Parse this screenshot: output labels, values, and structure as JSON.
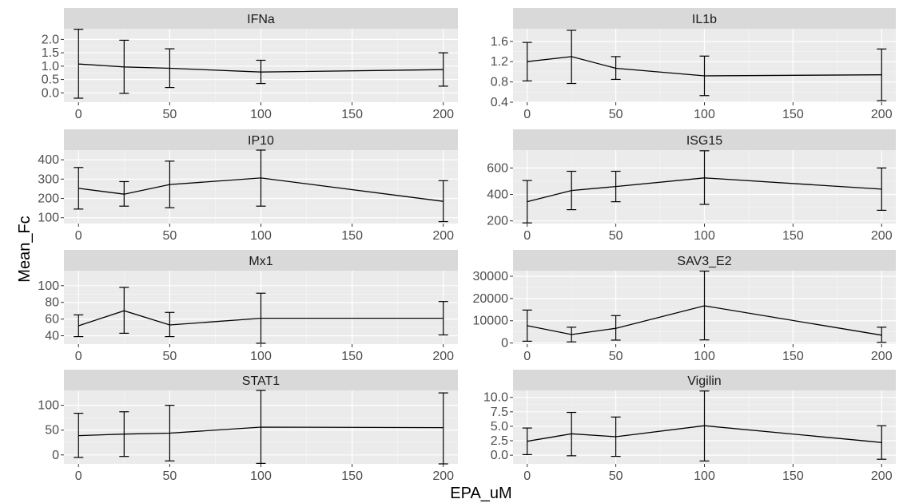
{
  "chart_data": {
    "type": "line",
    "xlabel": "EPA_uM",
    "ylabel": "Mean_Fc",
    "x": [
      0,
      25,
      50,
      100,
      200
    ],
    "x_ticks": [
      0,
      50,
      100,
      150,
      200
    ],
    "xlim": [
      -8,
      208
    ],
    "grid": true,
    "panels": [
      {
        "name": "IFNa",
        "ylim": [
          -0.35,
          2.4
        ],
        "y_ticks": [
          0.0,
          0.5,
          1.0,
          1.5,
          2.0
        ],
        "y_tick_labels": [
          "0.0",
          "0.5",
          "1.0",
          "1.5",
          "2.0"
        ],
        "mean": [
          1.08,
          0.97,
          0.92,
          0.78,
          0.87
        ],
        "lower": [
          -0.2,
          -0.02,
          0.2,
          0.35,
          0.25
        ],
        "upper": [
          2.38,
          1.97,
          1.65,
          1.22,
          1.5
        ]
      },
      {
        "name": "IL1b",
        "ylim": [
          0.4,
          1.85
        ],
        "y_ticks": [
          0.4,
          0.8,
          1.2,
          1.6
        ],
        "y_tick_labels": [
          "0.4",
          "0.8",
          "1.2",
          "1.6"
        ],
        "mean": [
          1.2,
          1.3,
          1.07,
          0.92,
          0.94
        ],
        "lower": [
          0.82,
          0.77,
          0.85,
          0.53,
          0.43
        ],
        "upper": [
          1.58,
          1.82,
          1.3,
          1.31,
          1.45
        ]
      },
      {
        "name": "IP10",
        "ylim": [
          70,
          450
        ],
        "y_ticks": [
          100,
          200,
          300,
          400
        ],
        "y_tick_labels": [
          "100",
          "200",
          "300",
          "400"
        ],
        "mean": [
          252,
          222,
          272,
          306,
          185
        ],
        "lower": [
          145,
          160,
          152,
          160,
          80
        ],
        "upper": [
          360,
          287,
          393,
          450
        ],
        "upper_note": "",
        "upper_last": 292
      },
      {
        "name": "ISG15",
        "ylim": [
          180,
          735
        ],
        "y_ticks": [
          200,
          400,
          600
        ],
        "y_tick_labels": [
          "200",
          "400",
          "600"
        ],
        "mean": [
          345,
          430,
          460,
          525,
          440
        ],
        "lower": [
          185,
          285,
          345,
          325,
          280
        ],
        "upper": [
          505,
          575,
          575,
          730,
          600
        ]
      },
      {
        "name": "Mx1",
        "ylim": [
          30,
          118
        ],
        "y_ticks": [
          40,
          60,
          80,
          100
        ],
        "y_tick_labels": [
          "40",
          "60",
          "80",
          "100"
        ],
        "mean": [
          52,
          70,
          53,
          61,
          61
        ],
        "lower": [
          39,
          43,
          39,
          31,
          41
        ],
        "upper": [
          65,
          98,
          68,
          91,
          81
        ]
      },
      {
        "name": "SAV3_E2",
        "ylim": [
          -500,
          32500
        ],
        "y_ticks": [
          0,
          10000,
          20000,
          30000
        ],
        "y_tick_labels": [
          "0",
          "10000",
          "20000",
          "30000"
        ],
        "mean": [
          7800,
          3800,
          6600,
          16700,
          3500
        ],
        "lower": [
          800,
          500,
          1300,
          1400,
          300
        ],
        "upper": [
          14800,
          7100,
          12300,
          32300,
          7100
        ]
      },
      {
        "name": "STAT1",
        "ylim": [
          -18,
          130
        ],
        "y_ticks": [
          0,
          50,
          100
        ],
        "y_tick_labels": [
          "0",
          "50",
          "100"
        ],
        "mean": [
          39,
          42,
          44,
          56,
          55
        ],
        "lower": [
          -5,
          -3,
          -12,
          -17,
          -18
        ],
        "upper": [
          84,
          87,
          100,
          130,
          125
        ]
      },
      {
        "name": "Vigilin",
        "ylim": [
          -1.5,
          11.2
        ],
        "y_ticks": [
          0.0,
          2.5,
          5.0,
          7.5,
          10.0
        ],
        "y_tick_labels": [
          "0.0",
          "2.5",
          "5.0",
          "7.5",
          "10.0"
        ],
        "mean": [
          2.4,
          3.7,
          3.2,
          5.1,
          2.2
        ],
        "lower": [
          0.1,
          -0.1,
          -0.2,
          -1.0,
          -0.7
        ],
        "upper": [
          4.7,
          7.4,
          6.6,
          11.1,
          5.1
        ]
      }
    ]
  }
}
